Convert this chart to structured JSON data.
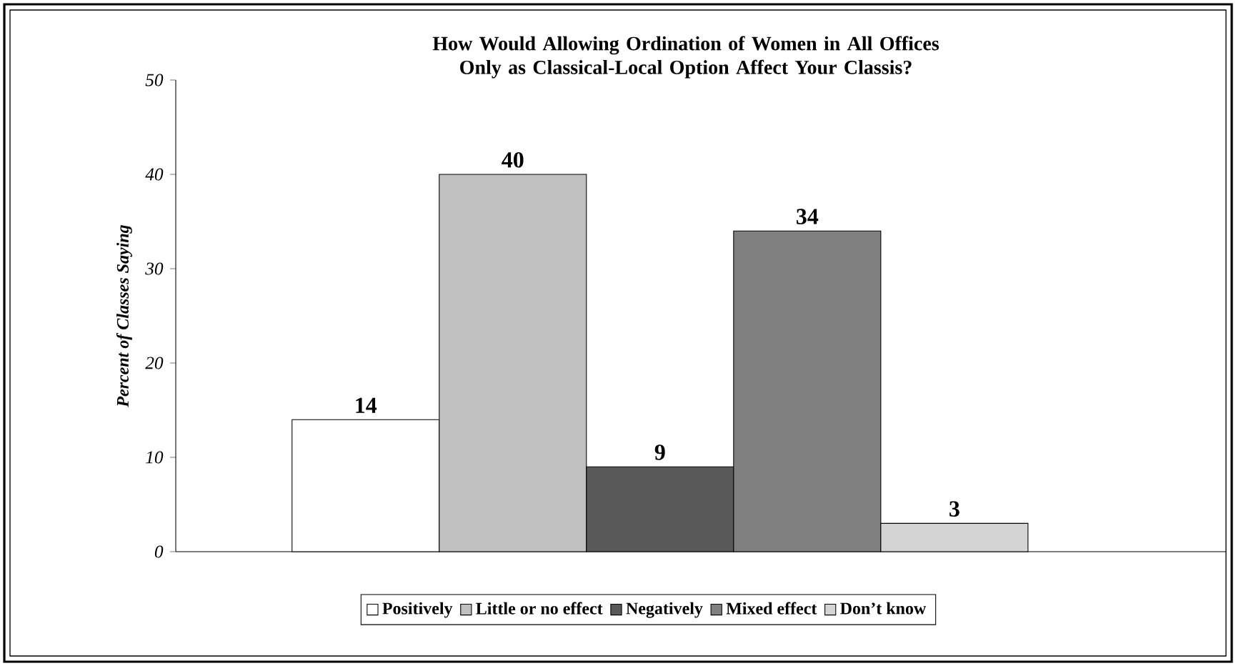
{
  "chart_data": {
    "type": "bar",
    "title": "How Would Allowing Ordination of Women in All Offices Only as Classical-Local Option Affect Your Classis?",
    "ylabel": "Percent of Classes Saying",
    "categories": [
      null
    ],
    "series": [
      {
        "name": "Positively",
        "color": "#ffffff",
        "values": [
          14
        ]
      },
      {
        "name": "Little or no effect",
        "color": "#c0c0c0",
        "values": [
          40
        ]
      },
      {
        "name": "Negatively",
        "color": "#595959",
        "values": [
          9
        ]
      },
      {
        "name": "Mixed effect",
        "color": "#808080",
        "values": [
          34
        ]
      },
      {
        "name": "Don’t know",
        "color": "#d4d4d4",
        "values": [
          3
        ]
      }
    ],
    "ylim": [
      0,
      50
    ],
    "yticks": [
      0,
      10,
      20,
      30,
      40,
      50
    ],
    "data_labels": true,
    "legend": "bottom",
    "grid": false
  }
}
